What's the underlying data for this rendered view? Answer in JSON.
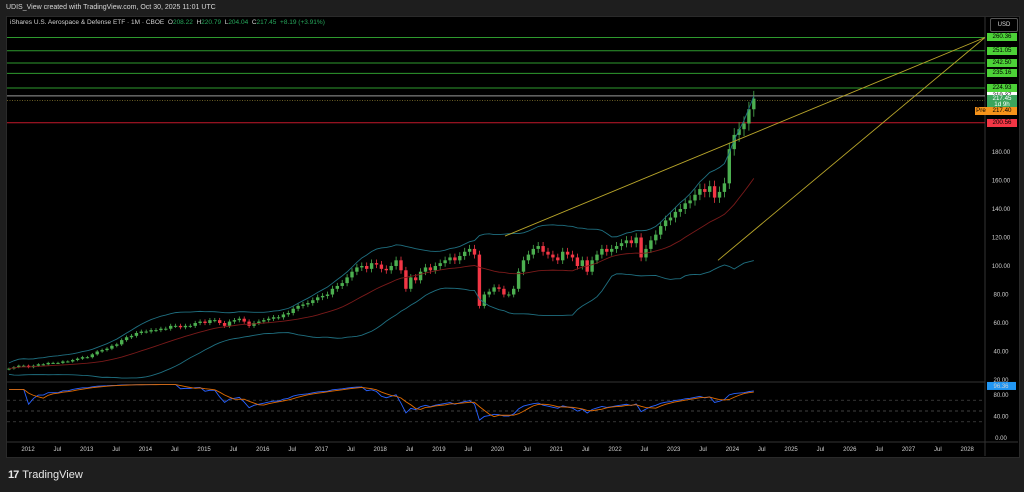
{
  "header": {
    "text": "UDIS_View created with TradingView.com, Oct 30, 2025 11:01 UTC"
  },
  "legend": {
    "symbol": "iShares U.S. Aerospace & Defense ETF · 1M · CBOE",
    "o_label": "O",
    "o": "208.22",
    "h_label": "H",
    "h": "220.79",
    "l_label": "L",
    "l": "204.04",
    "c_label": "C",
    "c": "217.45",
    "change": "+8.19 (+3.91%)"
  },
  "price_axis": {
    "currency": "USD",
    "ticks": [
      "180.00",
      "160.00",
      "140.00",
      "120.00",
      "100.00",
      "80.00",
      "60.00",
      "40.00",
      "20.00"
    ],
    "tags": [
      {
        "label": "260.36",
        "bg": "#4cd137",
        "price": 260.36
      },
      {
        "label": "251.05",
        "bg": "#4cd137",
        "price": 251.05
      },
      {
        "label": "242.50",
        "bg": "#4cd137",
        "price": 242.5
      },
      {
        "label": "235.16",
        "bg": "#4cd137",
        "price": 235.16
      },
      {
        "label": "224.93",
        "bg": "#4cd137",
        "price": 224.93
      },
      {
        "label": "219.37",
        "bg": "#ffffff",
        "price": 219.37
      },
      {
        "label": "217.45",
        "bg": "#3ba55c",
        "price": 217.45
      },
      {
        "label": "1d 9h",
        "bg": "#3ba55c",
        "price": 213.0
      },
      {
        "label": "217.40",
        "bg": "#f7931a",
        "price": 208.5
      },
      {
        "label": "200.56",
        "bg": "#f23645",
        "price": 200.56
      }
    ],
    "pre_label": "Pre"
  },
  "rsi_axis": {
    "current": "96.36",
    "ticks": [
      "80.00",
      "40.00",
      "0.00"
    ]
  },
  "time_axis": {
    "labels": [
      "2012",
      "Jul",
      "2013",
      "Jul",
      "2014",
      "Jul",
      "2015",
      "Jul",
      "2016",
      "Jul",
      "2017",
      "Jul",
      "2018",
      "Jul",
      "2019",
      "Jul",
      "2020",
      "Jul",
      "2021",
      "Jul",
      "2022",
      "Jul",
      "2023",
      "Jul",
      "2024",
      "Jul",
      "2025",
      "Jul",
      "2026",
      "Jul",
      "2027",
      "Jul",
      "2028"
    ]
  },
  "brand": {
    "name": "TradingView",
    "logo": "17"
  },
  "colors": {
    "up": "#4caf50",
    "down": "#f23645",
    "bb": "#1f6f80",
    "ma": "#7a1a1a",
    "trend": "#b8a52a",
    "rsi": "#2962ff",
    "rsi_ma": "#e06b00",
    "level_green": "#2e9a2e",
    "level_red": "#c2182b"
  },
  "chart_data": {
    "type": "candlestick",
    "title": "iShares U.S. Aerospace & Defense ETF · 1M · CBOE",
    "ylabel": "USD",
    "ylim": [
      15,
      265
    ],
    "horizontal_levels": [
      260.36,
      251.05,
      242.5,
      235.16,
      224.93,
      219.37,
      200.56
    ],
    "start": "2012-01",
    "closes": [
      28,
      29,
      30,
      30,
      29,
      30,
      31,
      31,
      32,
      32,
      32,
      33,
      33,
      34,
      35,
      36,
      36,
      38,
      40,
      41,
      42,
      44,
      45,
      48,
      50,
      51,
      53,
      54,
      54,
      55,
      55,
      56,
      56,
      58,
      58,
      57,
      58,
      58,
      60,
      61,
      60,
      62,
      62,
      60,
      58,
      61,
      62,
      63,
      61,
      58,
      60,
      61,
      62,
      63,
      64,
      64,
      66,
      67,
      70,
      72,
      73,
      74,
      76,
      78,
      79,
      80,
      84,
      86,
      88,
      92,
      96,
      99,
      100,
      98,
      102,
      101,
      98,
      97,
      100,
      104,
      97,
      84,
      92,
      90,
      96,
      99,
      97,
      100,
      102,
      104,
      106,
      104,
      107,
      110,
      112,
      108,
      72,
      80,
      82,
      85,
      84,
      80,
      80,
      84,
      96,
      104,
      108,
      112,
      114,
      110,
      108,
      106,
      104,
      110,
      108,
      106,
      100,
      104,
      96,
      104,
      108,
      112,
      110,
      112,
      114,
      116,
      118,
      116,
      120,
      106,
      112,
      118,
      122,
      128,
      132,
      134,
      138,
      140,
      144,
      146,
      150,
      154,
      152,
      156,
      148,
      152,
      158,
      182,
      192,
      196,
      200,
      210,
      217.45
    ],
    "rsi": {
      "ylim": [
        0,
        100
      ],
      "levels": [
        70,
        50,
        30
      ],
      "current": 96.36
    }
  }
}
